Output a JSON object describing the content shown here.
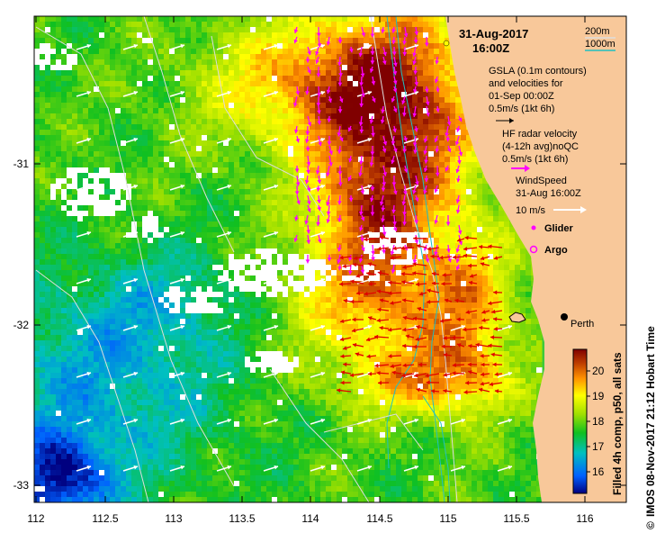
{
  "map": {
    "title_date": "31-Aug-2017",
    "title_time": "16:00Z",
    "city_label": "Perth",
    "x_ticks": [
      "112",
      "112.5",
      "113",
      "113.5",
      "114",
      "114.5",
      "115",
      "115.5",
      "116"
    ],
    "y_ticks": [
      "-31",
      "-32",
      "-33"
    ],
    "bathy_legend": {
      "label_200": "200m",
      "label_1000": "1000m",
      "color_200": "#dddddd",
      "color_1000": "#20c0c0"
    },
    "gsla_legend": {
      "line1": "GSLA (0.1m contours)",
      "line2": "and velocities for",
      "line3": "01-Sep 00:00Z",
      "scale": "0.5m/s (1kt 6h)"
    },
    "hf_legend": {
      "line1": "HF radar velocity",
      "line2": "(4-12h avg)noQC",
      "scale": "0.5m/s (1kt 6h)"
    },
    "wind_legend": {
      "line1": "WindSpeed",
      "line2": "31-Aug 16:00Z",
      "scale": "10 m/s"
    },
    "glider_label": "Glider",
    "argo_label": "Argo",
    "colorbar": {
      "ticks": [
        "20",
        "19",
        "18",
        "17",
        "16"
      ],
      "caption": "Filled 4h comp, p50, all sats"
    },
    "credit": "IMOS 08-Nov-2017 21:12 Hobart Time",
    "colors": {
      "land": "#f8c89a",
      "hf_vector": "#ff00ff",
      "gsla_vector": "#e00000",
      "wind_vector": "#ffffff"
    }
  }
}
